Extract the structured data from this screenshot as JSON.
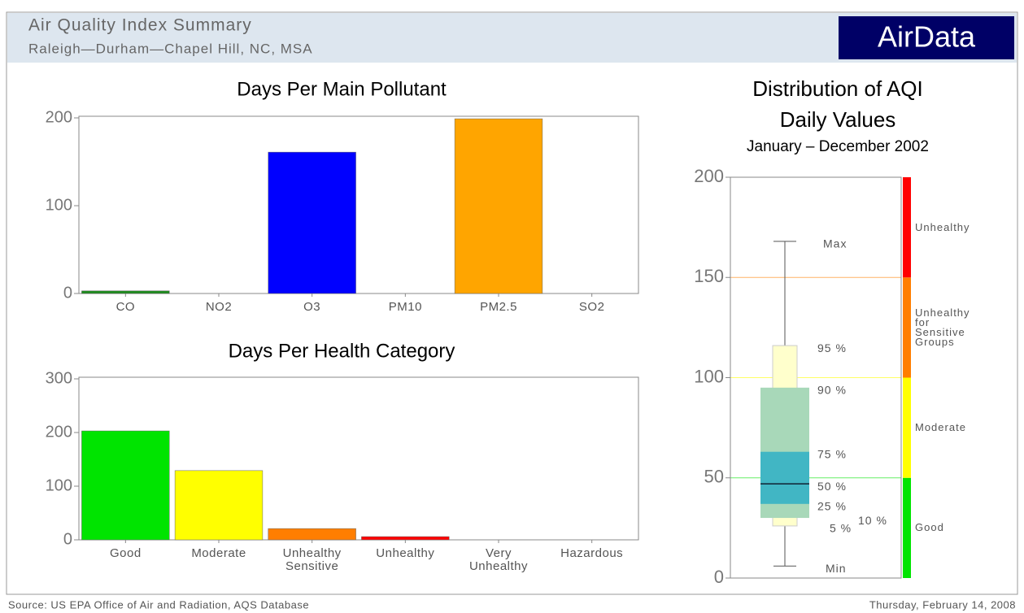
{
  "header": {
    "title": "Air Quality Index Summary",
    "subtitle": "Raleigh—Durham—Chapel Hill, NC, MSA",
    "brand": "AirData"
  },
  "chart_data": [
    {
      "type": "bar",
      "title": "Days Per Main Pollutant",
      "categories": [
        "CO",
        "NO2",
        "O3",
        "PM10",
        "PM2.5",
        "SO2"
      ],
      "values": [
        3,
        0,
        161,
        0,
        199,
        0
      ],
      "colors": [
        "#1f8a1f",
        "#808080",
        "#0000ff",
        "#808080",
        "#ffa500",
        "#808080"
      ],
      "ylim": [
        0,
        200
      ],
      "yticks": [
        0,
        100,
        200
      ]
    },
    {
      "type": "bar",
      "title": "Days Per Health Category",
      "categories": [
        "Good",
        "Moderate",
        "Unhealthy Sensitive",
        "Unhealthy",
        "Very Unhealthy",
        "Hazardous"
      ],
      "values": [
        203,
        129,
        21,
        6,
        0,
        0
      ],
      "colors": [
        "#00e400",
        "#ffff00",
        "#ff7e00",
        "#ff0000",
        "#99004c",
        "#7e0023"
      ],
      "ylim": [
        0,
        300
      ],
      "yticks": [
        0,
        100,
        200,
        300
      ]
    },
    {
      "type": "box",
      "title": "Distribution of AQI Daily Values",
      "subtitle": "January  –  December 2002",
      "ylim": [
        0,
        200
      ],
      "yticks": [
        0,
        50,
        100,
        150,
        200
      ],
      "stats": [
        {
          "label": "Max",
          "value": 168
        },
        {
          "label": "95 %",
          "value": 116
        },
        {
          "label": "90 %",
          "value": 95
        },
        {
          "label": "75 %",
          "value": 63
        },
        {
          "label": "50 %",
          "value": 47
        },
        {
          "label": "25 %",
          "value": 37
        },
        {
          "label": "10 %",
          "value": 30
        },
        {
          "label": "5 %",
          "value": 26
        },
        {
          "label": "Min",
          "value": 6
        }
      ],
      "bands": [
        {
          "label": "Good",
          "from": 0,
          "to": 50,
          "color": "#00e400"
        },
        {
          "label": "Moderate",
          "from": 50,
          "to": 100,
          "color": "#ffff00"
        },
        {
          "label": "Unhealthy for Sensitive Groups",
          "from": 100,
          "to": 150,
          "color": "#ff7e00"
        },
        {
          "label": "Unhealthy",
          "from": 150,
          "to": 200,
          "color": "#ff0000"
        }
      ]
    }
  ],
  "footer": {
    "source": "Source: US EPA  Office of Air and Radiation, AQS Database",
    "date": "Thursday, February 14, 2008"
  }
}
